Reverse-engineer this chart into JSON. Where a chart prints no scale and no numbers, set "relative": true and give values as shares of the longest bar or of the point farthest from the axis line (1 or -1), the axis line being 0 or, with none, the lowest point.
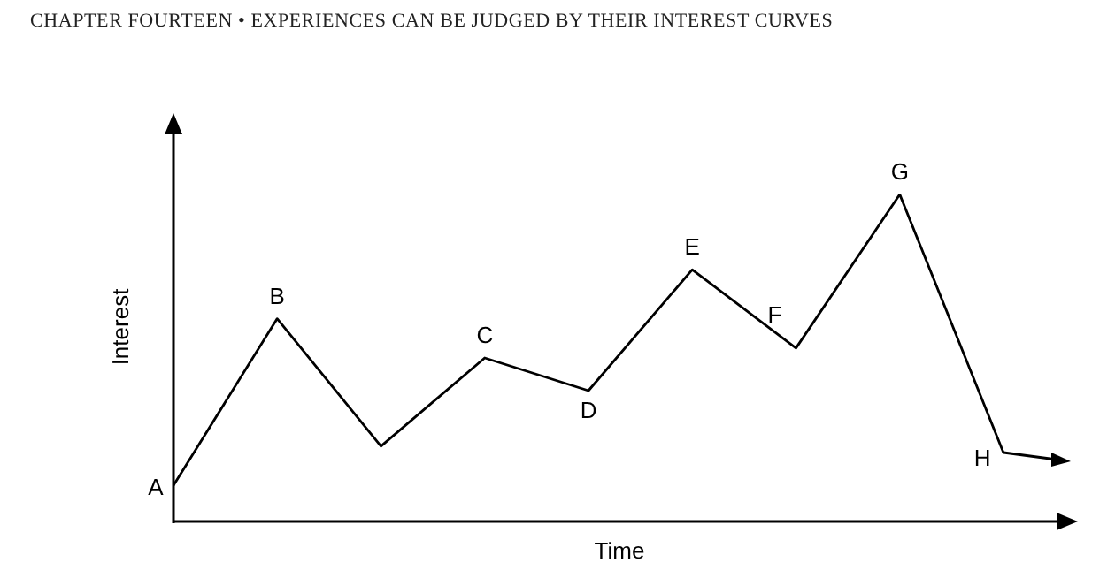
{
  "chart_data": {
    "type": "line",
    "title": "CHAPTER FOURTEEN • EXPERIENCES CAN BE JUDGED BY THEIR INTEREST CURVES",
    "xlabel": "Time",
    "ylabel": "Interest",
    "relative": true,
    "marker": "none",
    "categories": [
      null,
      null,
      null,
      null,
      null,
      null,
      null,
      null,
      null
    ],
    "series": [
      {
        "color": "#000000",
        "values": [
          0.11,
          0.62,
          0.23,
          0.5,
          0.4,
          0.77,
          0.53,
          1,
          0.21
        ]
      }
    ],
    "annotations": [
      "A",
      "B",
      "C",
      "D",
      "E",
      "F",
      "G",
      "H"
    ]
  }
}
